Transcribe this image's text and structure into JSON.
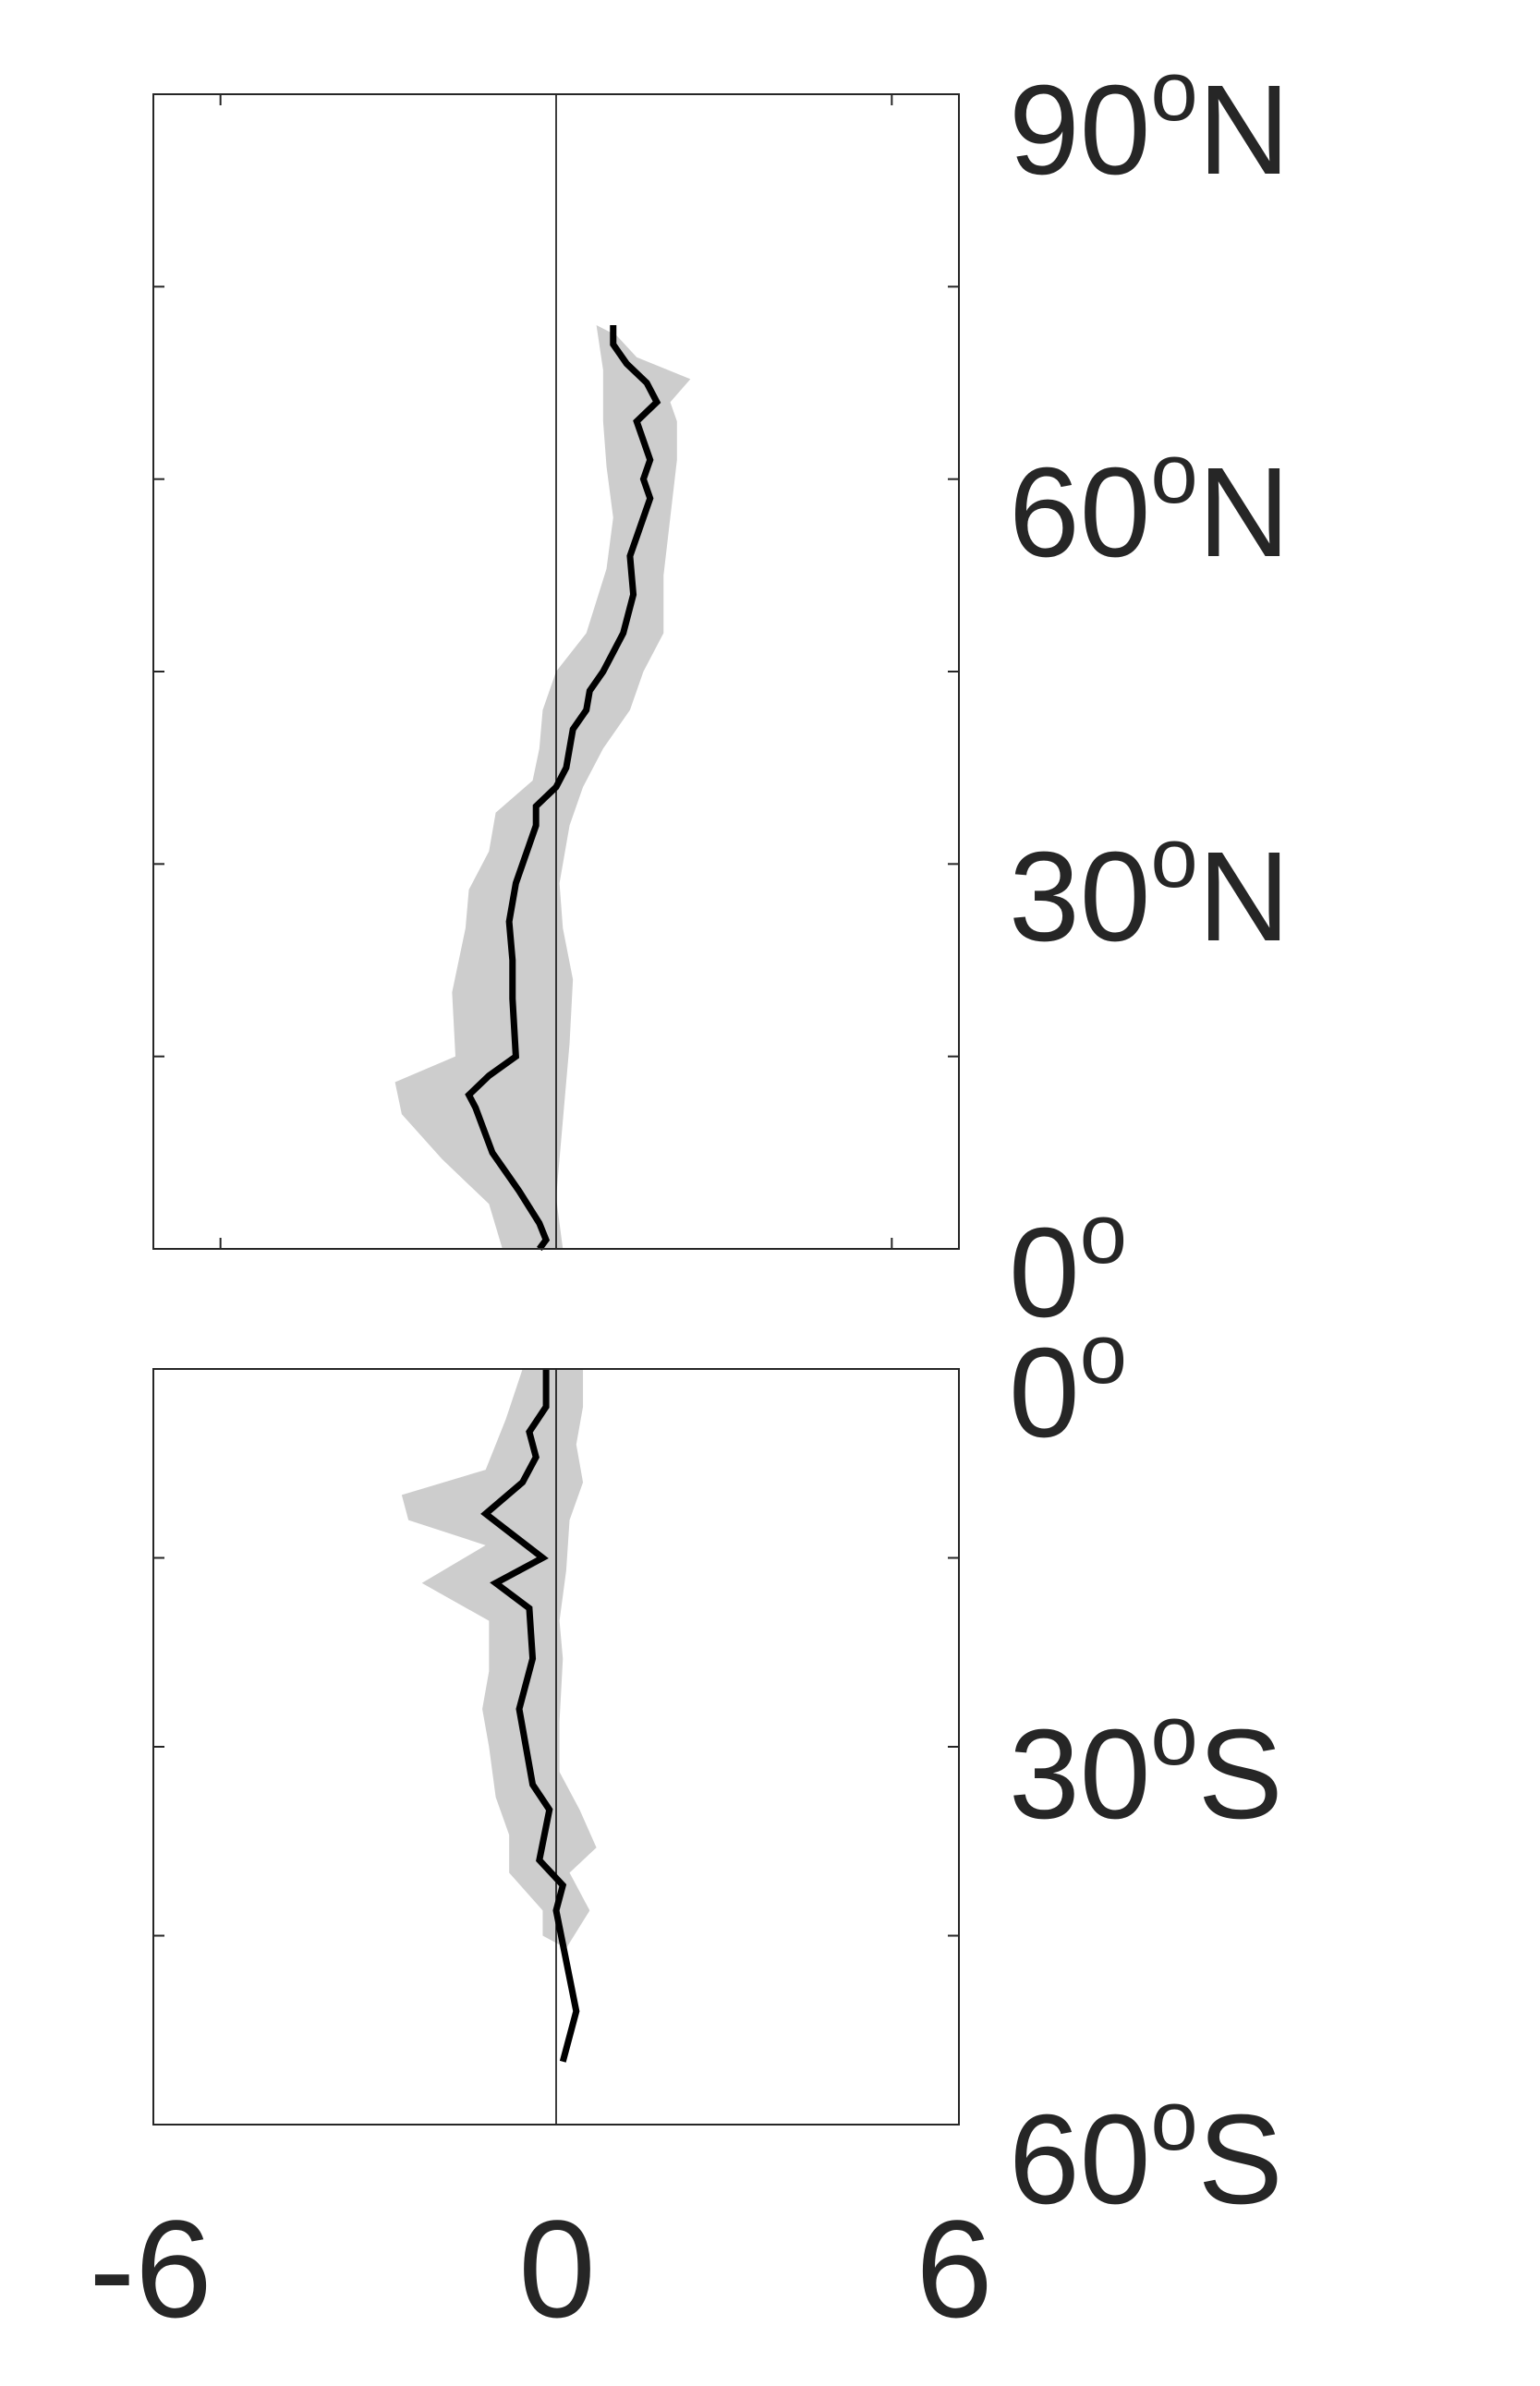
{
  "chart_data": [
    {
      "type": "line",
      "panel": "north",
      "title": "",
      "xlabel": "",
      "ylabel": "",
      "xlim": [
        -6,
        6
      ],
      "ylim": [
        0,
        90
      ],
      "y_tick_values": [
        0,
        15,
        30,
        45,
        60,
        75,
        90
      ],
      "x_tick_values": [
        -5,
        0,
        5
      ],
      "zero_line": true,
      "grid": false,
      "series": [
        {
          "style": "mean-line",
          "color": "#000000",
          "points": [
            {
              "x": 0.85,
              "y": 72
            },
            {
              "x": 0.85,
              "y": 70.5
            },
            {
              "x": 1.05,
              "y": 69
            },
            {
              "x": 1.35,
              "y": 67.5
            },
            {
              "x": 1.5,
              "y": 66
            },
            {
              "x": 1.2,
              "y": 64.5
            },
            {
              "x": 1.3,
              "y": 63
            },
            {
              "x": 1.4,
              "y": 61.5
            },
            {
              "x": 1.3,
              "y": 60
            },
            {
              "x": 1.4,
              "y": 58.5
            },
            {
              "x": 1.3,
              "y": 57
            },
            {
              "x": 1.2,
              "y": 55.5
            },
            {
              "x": 1.1,
              "y": 54
            },
            {
              "x": 1.15,
              "y": 51
            },
            {
              "x": 1.0,
              "y": 48
            },
            {
              "x": 0.7,
              "y": 45
            },
            {
              "x": 0.5,
              "y": 43.5
            },
            {
              "x": 0.45,
              "y": 42
            },
            {
              "x": 0.25,
              "y": 40.5
            },
            {
              "x": 0.15,
              "y": 37.5
            },
            {
              "x": 0.0,
              "y": 36
            },
            {
              "x": -0.3,
              "y": 34.5
            },
            {
              "x": -0.3,
              "y": 33
            },
            {
              "x": -0.4,
              "y": 31.5
            },
            {
              "x": -0.5,
              "y": 30
            },
            {
              "x": -0.6,
              "y": 28.5
            },
            {
              "x": -0.7,
              "y": 25.5
            },
            {
              "x": -0.65,
              "y": 22.5
            },
            {
              "x": -0.65,
              "y": 19.5
            },
            {
              "x": -0.6,
              "y": 15
            },
            {
              "x": -1.0,
              "y": 13.5
            },
            {
              "x": -1.3,
              "y": 12
            },
            {
              "x": -1.2,
              "y": 11
            },
            {
              "x": -0.95,
              "y": 7.5
            },
            {
              "x": -0.55,
              "y": 4.5
            },
            {
              "x": -0.25,
              "y": 2
            },
            {
              "x": -0.15,
              "y": 0.7
            },
            {
              "x": -0.25,
              "y": 0
            }
          ]
        },
        {
          "style": "spread-band",
          "color": "#cdcdcd",
          "upper": [
            {
              "x": 0.9,
              "y": 71.2
            },
            {
              "x": 1.2,
              "y": 69.5
            },
            {
              "x": 2.0,
              "y": 67.8
            },
            {
              "x": 1.7,
              "y": 66
            },
            {
              "x": 1.8,
              "y": 64.5
            },
            {
              "x": 1.8,
              "y": 61.5
            },
            {
              "x": 1.7,
              "y": 57
            },
            {
              "x": 1.6,
              "y": 52.5
            },
            {
              "x": 1.6,
              "y": 48
            },
            {
              "x": 1.3,
              "y": 45
            },
            {
              "x": 1.1,
              "y": 42
            },
            {
              "x": 0.7,
              "y": 39
            },
            {
              "x": 0.4,
              "y": 36
            },
            {
              "x": 0.2,
              "y": 33
            },
            {
              "x": 0.05,
              "y": 28.5
            },
            {
              "x": 0.1,
              "y": 25
            },
            {
              "x": 0.25,
              "y": 21
            },
            {
              "x": 0.2,
              "y": 16
            },
            {
              "x": 0.1,
              "y": 10
            },
            {
              "x": 0.0,
              "y": 4
            },
            {
              "x": 0.1,
              "y": 0
            }
          ],
          "lower": [
            {
              "x": 0.6,
              "y": 72
            },
            {
              "x": 0.7,
              "y": 68.5
            },
            {
              "x": 0.7,
              "y": 64.5
            },
            {
              "x": 0.75,
              "y": 61
            },
            {
              "x": 0.85,
              "y": 57
            },
            {
              "x": 0.75,
              "y": 53
            },
            {
              "x": 0.45,
              "y": 48
            },
            {
              "x": 0.0,
              "y": 45
            },
            {
              "x": -0.2,
              "y": 42
            },
            {
              "x": -0.25,
              "y": 39
            },
            {
              "x": -0.35,
              "y": 36.5
            },
            {
              "x": -0.9,
              "y": 34
            },
            {
              "x": -1.0,
              "y": 31
            },
            {
              "x": -1.3,
              "y": 28
            },
            {
              "x": -1.35,
              "y": 25
            },
            {
              "x": -1.55,
              "y": 20
            },
            {
              "x": -1.5,
              "y": 15
            },
            {
              "x": -2.4,
              "y": 13
            },
            {
              "x": -2.3,
              "y": 10.5
            },
            {
              "x": -1.7,
              "y": 7
            },
            {
              "x": -1.0,
              "y": 3.5
            },
            {
              "x": -0.8,
              "y": 0
            }
          ]
        }
      ]
    },
    {
      "type": "line",
      "panel": "south",
      "title": "",
      "xlabel": "",
      "ylabel": "",
      "xlim": [
        -6,
        6
      ],
      "ylim": [
        -60,
        0
      ],
      "y_tick_values": [
        -60,
        -45,
        -30,
        -15,
        0
      ],
      "x_tick_values": [
        -6,
        0,
        6
      ],
      "zero_line": true,
      "grid": false,
      "series": [
        {
          "style": "mean-line",
          "color": "#000000",
          "points": [
            {
              "x": -0.15,
              "y": 0
            },
            {
              "x": -0.15,
              "y": -3
            },
            {
              "x": -0.4,
              "y": -5
            },
            {
              "x": -0.3,
              "y": -7
            },
            {
              "x": -0.5,
              "y": -9
            },
            {
              "x": -1.05,
              "y": -11.5
            },
            {
              "x": -0.2,
              "y": -15
            },
            {
              "x": -0.9,
              "y": -17
            },
            {
              "x": -0.4,
              "y": -19
            },
            {
              "x": -0.35,
              "y": -23
            },
            {
              "x": -0.55,
              "y": -27
            },
            {
              "x": -0.45,
              "y": -30
            },
            {
              "x": -0.35,
              "y": -33
            },
            {
              "x": -0.1,
              "y": -35
            },
            {
              "x": -0.25,
              "y": -39
            },
            {
              "x": 0.1,
              "y": -41
            },
            {
              "x": 0.0,
              "y": -43
            },
            {
              "x": 0.3,
              "y": -51
            },
            {
              "x": 0.1,
              "y": -55
            }
          ]
        },
        {
          "style": "spread-band",
          "color": "#cdcdcd",
          "upper": [
            {
              "x": 0.4,
              "y": 0
            },
            {
              "x": 0.4,
              "y": -3
            },
            {
              "x": 0.3,
              "y": -6
            },
            {
              "x": 0.4,
              "y": -9
            },
            {
              "x": 0.2,
              "y": -12
            },
            {
              "x": 0.15,
              "y": -16
            },
            {
              "x": 0.05,
              "y": -20
            },
            {
              "x": 0.1,
              "y": -23
            },
            {
              "x": 0.05,
              "y": -28
            },
            {
              "x": 0.05,
              "y": -32
            },
            {
              "x": 0.35,
              "y": -35
            },
            {
              "x": 0.6,
              "y": -38
            },
            {
              "x": 0.2,
              "y": -40
            },
            {
              "x": 0.5,
              "y": -43
            },
            {
              "x": 0.15,
              "y": -46
            }
          ],
          "lower": [
            {
              "x": -0.5,
              "y": 0
            },
            {
              "x": -0.75,
              "y": -4
            },
            {
              "x": -1.05,
              "y": -8
            },
            {
              "x": -2.3,
              "y": -10
            },
            {
              "x": -2.2,
              "y": -12
            },
            {
              "x": -1.05,
              "y": -14
            },
            {
              "x": -2.0,
              "y": -17
            },
            {
              "x": -1.0,
              "y": -20
            },
            {
              "x": -1.0,
              "y": -24
            },
            {
              "x": -1.1,
              "y": -27
            },
            {
              "x": -1.0,
              "y": -30
            },
            {
              "x": -0.9,
              "y": -34
            },
            {
              "x": -0.7,
              "y": -37
            },
            {
              "x": -0.7,
              "y": -40
            },
            {
              "x": -0.2,
              "y": -43
            },
            {
              "x": -0.2,
              "y": -45
            }
          ]
        }
      ]
    }
  ],
  "lat_labels": {
    "n90": {
      "num": "90",
      "sup": "o",
      "suffix": "N"
    },
    "n60": {
      "num": "60",
      "sup": "o",
      "suffix": "N"
    },
    "n30": {
      "num": "30",
      "sup": "o",
      "suffix": "N"
    },
    "eq_north": {
      "num": "0",
      "sup": "o",
      "suffix": ""
    },
    "eq_south": {
      "num": "0",
      "sup": "o",
      "suffix": ""
    },
    "s30": {
      "num": "30",
      "sup": "o",
      "suffix": "S"
    },
    "s60": {
      "num": "60",
      "sup": "o",
      "suffix": "S"
    }
  },
  "x_tick_labels": {
    "neg6": "-6",
    "zero": "0",
    "pos6": "6"
  }
}
